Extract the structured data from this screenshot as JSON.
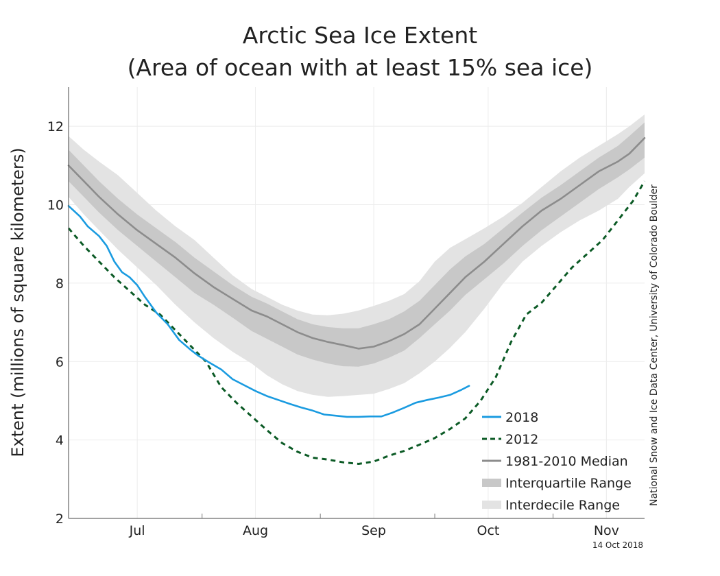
{
  "chart_data": {
    "type": "line",
    "title": "Arctic Sea Ice Extent",
    "subtitle": "(Area of ocean with at least 15% sea ice)",
    "ylabel": "Extent (millions of square kilometers)",
    "xlabel": "",
    "ylim": [
      2,
      13
    ],
    "xlim": [
      "Jun 27",
      "Nov 25"
    ],
    "ytick_labels": [
      "2",
      "4",
      "6",
      "8",
      "10",
      "12"
    ],
    "xtick_labels": [
      {
        "label": "Jul",
        "date": "Jul 15"
      },
      {
        "label": "Aug",
        "date": "Aug 15"
      },
      {
        "label": "Sep",
        "date": "Sep 15"
      },
      {
        "label": "Oct",
        "date": "Oct 15"
      },
      {
        "label": "Nov",
        "date": "Nov 15"
      }
    ],
    "month_boundaries": [
      "Aug 1",
      "Sep 1",
      "Oct 1",
      "Nov 1"
    ],
    "grid": true,
    "legend_position": "bottom-right",
    "series": [
      {
        "name": "2018",
        "style": "solid",
        "color": "#1a9be0",
        "points": [
          [
            "Jun 27",
            9.97
          ],
          [
            "Jun 30",
            9.7
          ],
          [
            "Jul 2",
            9.45
          ],
          [
            "Jul 5",
            9.2
          ],
          [
            "Jul 7",
            8.95
          ],
          [
            "Jul 9",
            8.55
          ],
          [
            "Jul 11",
            8.28
          ],
          [
            "Jul 13",
            8.15
          ],
          [
            "Jul 15",
            7.95
          ],
          [
            "Jul 17",
            7.65
          ],
          [
            "Jul 20",
            7.25
          ],
          [
            "Jul 23",
            6.95
          ],
          [
            "Jul 26",
            6.55
          ],
          [
            "Jul 29",
            6.3
          ],
          [
            "Jul 31",
            6.15
          ],
          [
            "Aug 3",
            5.97
          ],
          [
            "Aug 6",
            5.8
          ],
          [
            "Aug 9",
            5.55
          ],
          [
            "Aug 12",
            5.4
          ],
          [
            "Aug 15",
            5.25
          ],
          [
            "Aug 18",
            5.12
          ],
          [
            "Aug 21",
            5.02
          ],
          [
            "Aug 24",
            4.92
          ],
          [
            "Aug 27",
            4.83
          ],
          [
            "Aug 30",
            4.75
          ],
          [
            "Sep 2",
            4.65
          ],
          [
            "Sep 5",
            4.62
          ],
          [
            "Sep 8",
            4.59
          ],
          [
            "Sep 11",
            4.59
          ],
          [
            "Sep 14",
            4.6
          ],
          [
            "Sep 17",
            4.6
          ],
          [
            "Sep 20",
            4.7
          ],
          [
            "Sep 23",
            4.82
          ],
          [
            "Sep 26",
            4.95
          ],
          [
            "Sep 29",
            5.02
          ],
          [
            "Oct 2",
            5.08
          ],
          [
            "Oct 5",
            5.15
          ],
          [
            "Oct 8",
            5.28
          ],
          [
            "Oct 10",
            5.38
          ]
        ]
      },
      {
        "name": "2012",
        "style": "dashed",
        "color": "#0b5a25",
        "points": [
          [
            "Jun 27",
            9.4
          ],
          [
            "Jul 1",
            8.95
          ],
          [
            "Jul 5",
            8.55
          ],
          [
            "Jul 9",
            8.15
          ],
          [
            "Jul 13",
            7.8
          ],
          [
            "Jul 17",
            7.45
          ],
          [
            "Jul 21",
            7.2
          ],
          [
            "Jul 25",
            6.8
          ],
          [
            "Jul 29",
            6.4
          ],
          [
            "Aug 2",
            6.0
          ],
          [
            "Aug 6",
            5.35
          ],
          [
            "Aug 10",
            4.95
          ],
          [
            "Aug 14",
            4.6
          ],
          [
            "Aug 18",
            4.25
          ],
          [
            "Aug 22",
            3.92
          ],
          [
            "Aug 26",
            3.7
          ],
          [
            "Aug 30",
            3.55
          ],
          [
            "Sep 3",
            3.5
          ],
          [
            "Sep 7",
            3.43
          ],
          [
            "Sep 11",
            3.39
          ],
          [
            "Sep 15",
            3.45
          ],
          [
            "Sep 19",
            3.6
          ],
          [
            "Sep 23",
            3.72
          ],
          [
            "Sep 27",
            3.88
          ],
          [
            "Oct 1",
            4.05
          ],
          [
            "Oct 5",
            4.28
          ],
          [
            "Oct 9",
            4.55
          ],
          [
            "Oct 13",
            5.0
          ],
          [
            "Oct 17",
            5.6
          ],
          [
            "Oct 21",
            6.5
          ],
          [
            "Oct 25",
            7.2
          ],
          [
            "Oct 29",
            7.5
          ],
          [
            "Nov 2",
            7.95
          ],
          [
            "Nov 6",
            8.4
          ],
          [
            "Nov 10",
            8.75
          ],
          [
            "Nov 14",
            9.1
          ],
          [
            "Nov 18",
            9.6
          ],
          [
            "Nov 22",
            10.1
          ],
          [
            "Nov 25",
            10.6
          ]
        ]
      },
      {
        "name": "1981-2010 Median",
        "style": "solid",
        "color": "#8c8c8c",
        "points": [
          [
            "Jun 27",
            11.0
          ],
          [
            "Jul 1",
            10.6
          ],
          [
            "Jul 5",
            10.2
          ],
          [
            "Jul 10",
            9.75
          ],
          [
            "Jul 15",
            9.35
          ],
          [
            "Jul 20",
            9.0
          ],
          [
            "Jul 25",
            8.65
          ],
          [
            "Jul 30",
            8.25
          ],
          [
            "Aug 4",
            7.9
          ],
          [
            "Aug 9",
            7.6
          ],
          [
            "Aug 14",
            7.3
          ],
          [
            "Aug 18",
            7.15
          ],
          [
            "Aug 22",
            6.95
          ],
          [
            "Aug 26",
            6.75
          ],
          [
            "Aug 30",
            6.6
          ],
          [
            "Sep 3",
            6.5
          ],
          [
            "Sep 7",
            6.42
          ],
          [
            "Sep 11",
            6.33
          ],
          [
            "Sep 15",
            6.38
          ],
          [
            "Sep 19",
            6.52
          ],
          [
            "Sep 23",
            6.7
          ],
          [
            "Sep 27",
            6.95
          ],
          [
            "Oct 1",
            7.35
          ],
          [
            "Oct 5",
            7.75
          ],
          [
            "Oct 9",
            8.15
          ],
          [
            "Oct 14",
            8.55
          ],
          [
            "Oct 19",
            9.0
          ],
          [
            "Oct 24",
            9.45
          ],
          [
            "Oct 29",
            9.85
          ],
          [
            "Nov 3",
            10.15
          ],
          [
            "Nov 8",
            10.5
          ],
          [
            "Nov 13",
            10.85
          ],
          [
            "Nov 18",
            11.1
          ],
          [
            "Nov 21",
            11.3
          ],
          [
            "Nov 25",
            11.7
          ]
        ]
      }
    ],
    "bands": [
      {
        "name": "Interquartile Range",
        "color": "#c8c8c8",
        "upper": [
          [
            "Jun 27",
            11.4
          ],
          [
            "Jul 1",
            11.0
          ],
          [
            "Jul 5",
            10.6
          ],
          [
            "Jul 10",
            10.15
          ],
          [
            "Jul 15",
            9.75
          ],
          [
            "Jul 20",
            9.4
          ],
          [
            "Jul 25",
            9.05
          ],
          [
            "Jul 30",
            8.65
          ],
          [
            "Aug 4",
            8.3
          ],
          [
            "Aug 9",
            7.95
          ],
          [
            "Aug 14",
            7.65
          ],
          [
            "Aug 18",
            7.48
          ],
          [
            "Aug 22",
            7.28
          ],
          [
            "Aug 26",
            7.08
          ],
          [
            "Aug 30",
            6.95
          ],
          [
            "Sep 3",
            6.88
          ],
          [
            "Sep 7",
            6.85
          ],
          [
            "Sep 11",
            6.85
          ],
          [
            "Sep 15",
            6.95
          ],
          [
            "Sep 19",
            7.08
          ],
          [
            "Sep 23",
            7.28
          ],
          [
            "Sep 27",
            7.55
          ],
          [
            "Oct 1",
            7.95
          ],
          [
            "Oct 5",
            8.35
          ],
          [
            "Oct 9",
            8.68
          ],
          [
            "Oct 14",
            9.0
          ],
          [
            "Oct 19",
            9.4
          ],
          [
            "Oct 24",
            9.8
          ],
          [
            "Oct 29",
            10.18
          ],
          [
            "Nov 3",
            10.5
          ],
          [
            "Nov 8",
            10.85
          ],
          [
            "Nov 13",
            11.2
          ],
          [
            "Nov 18",
            11.5
          ],
          [
            "Nov 21",
            11.75
          ],
          [
            "Nov 25",
            12.1
          ]
        ],
        "lower": [
          [
            "Jun 27",
            10.6
          ],
          [
            "Jul 1",
            10.2
          ],
          [
            "Jul 5",
            9.8
          ],
          [
            "Jul 10",
            9.35
          ],
          [
            "Jul 15",
            8.95
          ],
          [
            "Jul 20",
            8.55
          ],
          [
            "Jul 25",
            8.15
          ],
          [
            "Jul 30",
            7.75
          ],
          [
            "Aug 4",
            7.45
          ],
          [
            "Aug 9",
            7.12
          ],
          [
            "Aug 14",
            6.78
          ],
          [
            "Aug 18",
            6.58
          ],
          [
            "Aug 22",
            6.38
          ],
          [
            "Aug 26",
            6.18
          ],
          [
            "Aug 30",
            6.05
          ],
          [
            "Sep 3",
            5.95
          ],
          [
            "Sep 7",
            5.88
          ],
          [
            "Sep 11",
            5.87
          ],
          [
            "Sep 15",
            5.95
          ],
          [
            "Sep 19",
            6.1
          ],
          [
            "Sep 23",
            6.28
          ],
          [
            "Sep 27",
            6.6
          ],
          [
            "Oct 1",
            6.95
          ],
          [
            "Oct 5",
            7.3
          ],
          [
            "Oct 9",
            7.7
          ],
          [
            "Oct 14",
            8.1
          ],
          [
            "Oct 19",
            8.5
          ],
          [
            "Oct 24",
            8.95
          ],
          [
            "Oct 29",
            9.35
          ],
          [
            "Nov 3",
            9.7
          ],
          [
            "Nov 8",
            10.05
          ],
          [
            "Nov 13",
            10.4
          ],
          [
            "Nov 18",
            10.7
          ],
          [
            "Nov 21",
            10.9
          ],
          [
            "Nov 25",
            11.2
          ]
        ]
      },
      {
        "name": "Interdecile Range",
        "color": "#e3e3e3",
        "upper": [
          [
            "Jun 27",
            11.75
          ],
          [
            "Jul 1",
            11.4
          ],
          [
            "Jul 5",
            11.1
          ],
          [
            "Jul 10",
            10.75
          ],
          [
            "Jul 15",
            10.3
          ],
          [
            "Jul 20",
            9.85
          ],
          [
            "Jul 25",
            9.45
          ],
          [
            "Jul 30",
            9.1
          ],
          [
            "Aug 4",
            8.65
          ],
          [
            "Aug 9",
            8.2
          ],
          [
            "Aug 14",
            7.85
          ],
          [
            "Aug 18",
            7.65
          ],
          [
            "Aug 22",
            7.45
          ],
          [
            "Aug 26",
            7.3
          ],
          [
            "Aug 30",
            7.2
          ],
          [
            "Sep 3",
            7.18
          ],
          [
            "Sep 7",
            7.22
          ],
          [
            "Sep 11",
            7.3
          ],
          [
            "Sep 15",
            7.42
          ],
          [
            "Sep 19",
            7.55
          ],
          [
            "Sep 23",
            7.72
          ],
          [
            "Sep 27",
            8.05
          ],
          [
            "Oct 1",
            8.55
          ],
          [
            "Oct 5",
            8.9
          ],
          [
            "Oct 9",
            9.12
          ],
          [
            "Oct 14",
            9.4
          ],
          [
            "Oct 19",
            9.7
          ],
          [
            "Oct 24",
            10.05
          ],
          [
            "Oct 29",
            10.45
          ],
          [
            "Nov 3",
            10.85
          ],
          [
            "Nov 8",
            11.2
          ],
          [
            "Nov 13",
            11.5
          ],
          [
            "Nov 18",
            11.8
          ],
          [
            "Nov 21",
            12.0
          ],
          [
            "Nov 25",
            12.3
          ]
        ],
        "lower": [
          [
            "Jun 27",
            10.2
          ],
          [
            "Jul 1",
            9.75
          ],
          [
            "Jul 5",
            9.35
          ],
          [
            "Jul 10",
            8.85
          ],
          [
            "Jul 15",
            8.4
          ],
          [
            "Jul 20",
            7.95
          ],
          [
            "Jul 25",
            7.45
          ],
          [
            "Jul 30",
            7.0
          ],
          [
            "Aug 4",
            6.6
          ],
          [
            "Aug 9",
            6.25
          ],
          [
            "Aug 14",
            5.95
          ],
          [
            "Aug 18",
            5.65
          ],
          [
            "Aug 22",
            5.42
          ],
          [
            "Aug 26",
            5.25
          ],
          [
            "Aug 30",
            5.15
          ],
          [
            "Sep 3",
            5.1
          ],
          [
            "Sep 7",
            5.12
          ],
          [
            "Sep 11",
            5.15
          ],
          [
            "Sep 15",
            5.18
          ],
          [
            "Sep 19",
            5.3
          ],
          [
            "Sep 23",
            5.45
          ],
          [
            "Sep 27",
            5.7
          ],
          [
            "Oct 1",
            6.0
          ],
          [
            "Oct 5",
            6.35
          ],
          [
            "Oct 9",
            6.75
          ],
          [
            "Oct 14",
            7.35
          ],
          [
            "Oct 19",
            8.0
          ],
          [
            "Oct 24",
            8.55
          ],
          [
            "Oct 29",
            8.95
          ],
          [
            "Nov 3",
            9.3
          ],
          [
            "Nov 8",
            9.6
          ],
          [
            "Nov 13",
            9.85
          ],
          [
            "Nov 18",
            10.15
          ],
          [
            "Nov 21",
            10.45
          ],
          [
            "Nov 25",
            10.8
          ]
        ]
      }
    ],
    "legend": [
      {
        "label": "2018",
        "kind": "line",
        "color": "#1a9be0",
        "style": "solid"
      },
      {
        "label": "2012",
        "kind": "line",
        "color": "#0b5a25",
        "style": "dashed"
      },
      {
        "label": "1981-2010 Median",
        "kind": "line",
        "color": "#8c8c8c",
        "style": "solid"
      },
      {
        "label": "Interquartile Range",
        "kind": "band",
        "color": "#c8c8c8"
      },
      {
        "label": "Interdecile Range",
        "kind": "band",
        "color": "#e3e3e3"
      }
    ]
  },
  "credit": "National Snow and Ice Data Center, University of Colorado Boulder",
  "date_stamp": "14 Oct 2018"
}
